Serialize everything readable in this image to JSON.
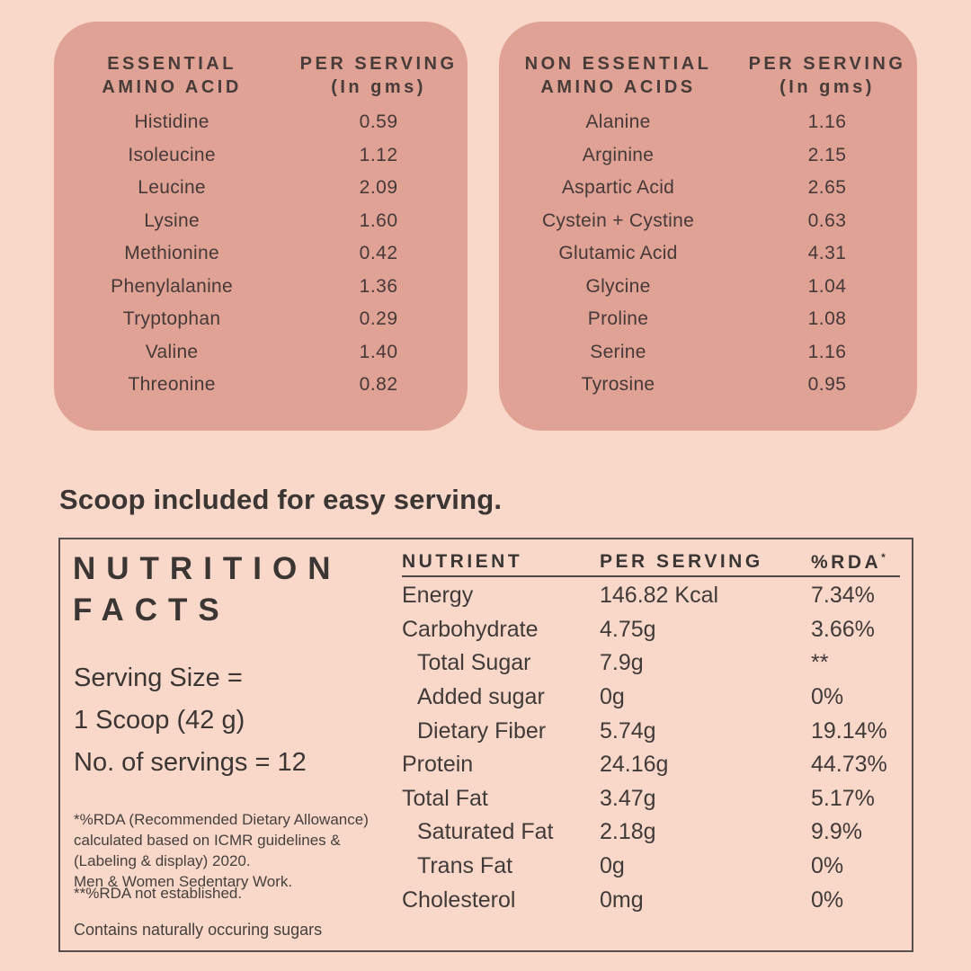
{
  "page": {
    "background_color": "#f9d8ca",
    "card_color": "#dfa294",
    "text_color": "#3f3937",
    "scoop_note": "Scoop included for easy serving."
  },
  "essential_card": {
    "title_line1": "ESSENTIAL",
    "title_line2": "AMINO ACID",
    "per_serving_line1": "PER SERVING",
    "per_serving_line2": "(In gms)",
    "rows": [
      {
        "name": "Histidine",
        "value": "0.59"
      },
      {
        "name": "Isoleucine",
        "value": "1.12"
      },
      {
        "name": "Leucine",
        "value": "2.09"
      },
      {
        "name": "Lysine",
        "value": "1.60"
      },
      {
        "name": "Methionine",
        "value": "0.42"
      },
      {
        "name": "Phenylalanine",
        "value": "1.36"
      },
      {
        "name": "Tryptophan",
        "value": "0.29"
      },
      {
        "name": "Valine",
        "value": "1.40"
      },
      {
        "name": "Threonine",
        "value": "0.82"
      }
    ]
  },
  "non_essential_card": {
    "title_line1": "NON ESSENTIAL",
    "title_line2": "AMINO ACIDS",
    "per_serving_line1": "PER SERVING",
    "per_serving_line2": "(In gms)",
    "rows": [
      {
        "name": "Alanine",
        "value": "1.16"
      },
      {
        "name": "Arginine",
        "value": "2.15"
      },
      {
        "name": "Aspartic Acid",
        "value": "2.65"
      },
      {
        "name": "Cystein + Cystine",
        "value": "0.63"
      },
      {
        "name": "Glutamic Acid",
        "value": "4.31"
      },
      {
        "name": "Glycine",
        "value": "1.04"
      },
      {
        "name": "Proline",
        "value": "1.08"
      },
      {
        "name": "Serine",
        "value": "1.16"
      },
      {
        "name": "Tyrosine",
        "value": "0.95"
      }
    ]
  },
  "nutrition_facts": {
    "title_line1": "NUTRITION",
    "title_line2": "FACTS",
    "serving_size_line1": "Serving Size =",
    "serving_size_line2": "1 Scoop (42 g)",
    "servings_count": "No. of servings = 12",
    "rda_footnote_lines": [
      "*%RDA (Recommended Dietary Allowance)",
      "calculated based on ICMR guidelines &",
      "(Labeling & display) 2020.",
      "Men & Women Sedentary Work."
    ],
    "rda_not_established": "**%RDA not established.",
    "sugars_note": "Contains naturally occuring sugars",
    "table": {
      "header_nutrient": "NUTRIENT",
      "header_per_serving": "PER SERVING",
      "header_rda": "%RDA",
      "header_rda_asterisk": "*",
      "rows": [
        {
          "name": "Energy",
          "value": "146.82 Kcal",
          "rda": "7.34%"
        },
        {
          "name": "Carbohydrate",
          "value": "4.75g",
          "rda": "3.66%"
        },
        {
          "name": "Total Sugar",
          "value": "7.9g",
          "rda": "**"
        },
        {
          "name": "Added sugar",
          "value": "0g",
          "rda": "0%"
        },
        {
          "name": "Dietary Fiber",
          "value": "5.74g",
          "rda": "19.14%"
        },
        {
          "name": "Protein",
          "value": "24.16g",
          "rda": "44.73%"
        },
        {
          "name": "Total Fat",
          "value": "3.47g",
          "rda": "5.17%"
        },
        {
          "name": "Saturated Fat",
          "value": "2.18g",
          "rda": "9.9%"
        },
        {
          "name": "Trans Fat",
          "value": "0g",
          "rda": "0%"
        },
        {
          "name": "Cholesterol",
          "value": "0mg",
          "rda": "0%"
        }
      ]
    }
  }
}
